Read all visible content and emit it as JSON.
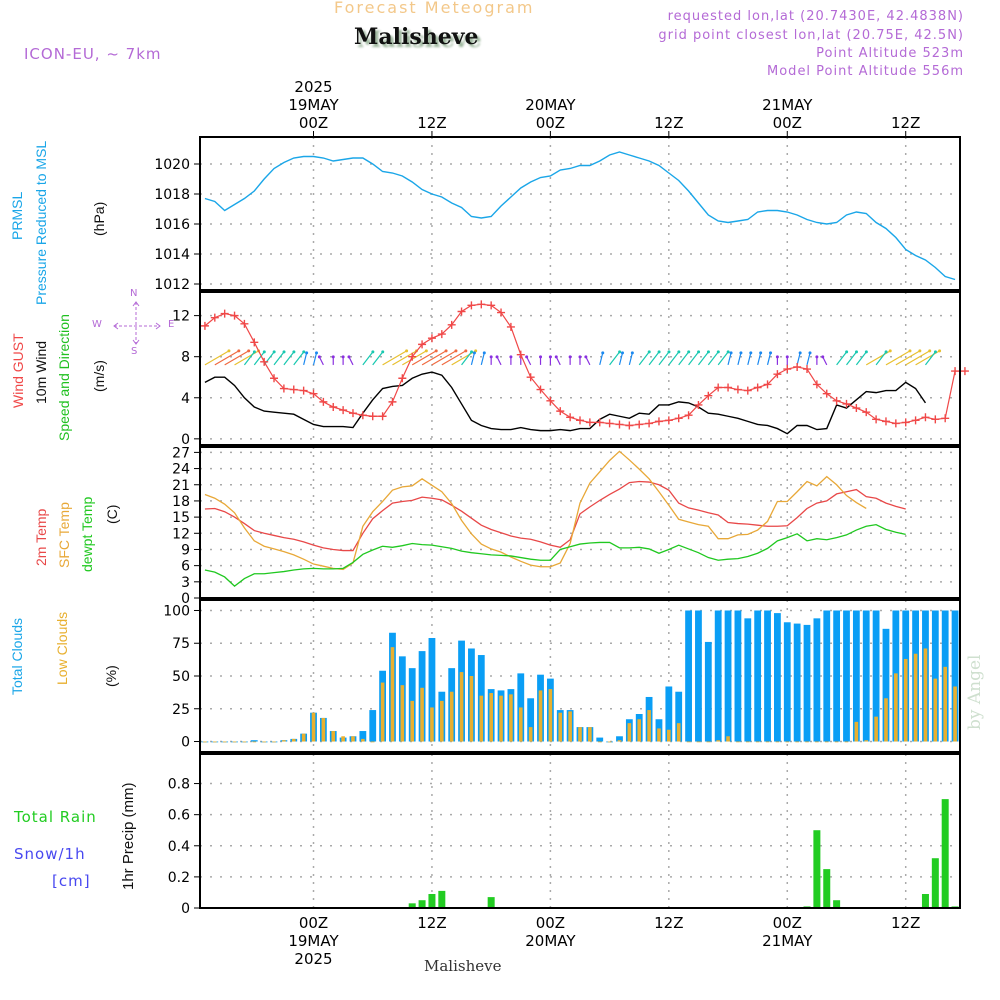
{
  "header": {
    "title": "Forecast Meteogram",
    "location": "Malisheve",
    "model": "ICON-EU, ~ 7km",
    "requested": "requested lon,lat (20.7430E, 42.4838N)",
    "grid_point": "grid point closest lon,lat (20.75E, 42.5N)",
    "point_altitude": "Point Altitude 523m",
    "model_altitude": "Model Point Altitude 556m",
    "footer_location": "Malisheve",
    "credit": "by Angel"
  },
  "time_axis": {
    "top_labels": [
      {
        "hour": 0,
        "lines": [
          "2025",
          "19MAY",
          "00Z"
        ]
      },
      {
        "hour": 12,
        "lines": [
          "12Z"
        ]
      },
      {
        "hour": 24,
        "lines": [
          "20MAY",
          "00Z"
        ]
      },
      {
        "hour": 36,
        "lines": [
          "12Z"
        ]
      },
      {
        "hour": 48,
        "lines": [
          "21MAY",
          "00Z"
        ]
      },
      {
        "hour": 60,
        "lines": [
          "12Z"
        ]
      }
    ],
    "bottom_labels": [
      {
        "hour": 0,
        "lines": [
          "00Z",
          "19MAY",
          "2025"
        ]
      },
      {
        "hour": 12,
        "lines": [
          "12Z"
        ]
      },
      {
        "hour": 24,
        "lines": [
          "00Z",
          "20MAY"
        ]
      },
      {
        "hour": 36,
        "lines": [
          "12Z"
        ]
      },
      {
        "hour": 48,
        "lines": [
          "00Z",
          "21MAY"
        ]
      },
      {
        "hour": 60,
        "lines": [
          "12Z"
        ]
      }
    ],
    "range_hours": [
      -11.5,
      65.5
    ],
    "start_hour": -11
  },
  "labels": {
    "pressure": [
      "PRMSL",
      "Pressure Reduced to MSL",
      "(hPa)"
    ],
    "wind": [
      "Wind GUST",
      "10m Wind",
      "Speed and Direction",
      "(m/s)"
    ],
    "compass": {
      "n": "N",
      "s": "S",
      "w": "W",
      "e": "E"
    },
    "temp": [
      "2m Temp",
      "SFC Temp",
      "dewpt Temp",
      "(C)"
    ],
    "clouds": [
      "Total Clouds",
      "Low Clouds",
      "(%)"
    ],
    "precip": [
      "Total  Rain",
      "Snow/1h",
      "[cm]",
      "1hr Precip (mm)"
    ]
  },
  "colors": {
    "pressure": "#1aa6e8",
    "gust": "#f04848",
    "wind": "#000000",
    "temp2m": "#e84848",
    "sfc": "#e8a838",
    "dewpt": "#20c820",
    "total_clouds": "#0a9ef5",
    "low_clouds": "#e8b030",
    "rain": "#22cc22",
    "snow": "#4848f0",
    "label_purple": "#b46ad6"
  },
  "chart_data": [
    {
      "type": "line",
      "title": "PRMSL Pressure Reduced to MSL",
      "ylabel": "(hPa)",
      "ylim": [
        1011.6,
        1021.8
      ],
      "yticks": [
        1012,
        1014,
        1016,
        1018,
        1020
      ],
      "series": [
        {
          "name": "PRMSL",
          "values": [
            1017.7,
            1017.5,
            1016.9,
            1017.3,
            1017.7,
            1018.2,
            1019.0,
            1019.7,
            1020.1,
            1020.4,
            1020.5,
            1020.5,
            1020.4,
            1020.2,
            1020.3,
            1020.4,
            1020.4,
            1020.0,
            1019.5,
            1019.4,
            1019.2,
            1018.8,
            1018.3,
            1018.0,
            1017.8,
            1017.4,
            1017.1,
            1016.5,
            1016.4,
            1016.5,
            1017.2,
            1017.8,
            1018.4,
            1018.8,
            1019.1,
            1019.2,
            1019.6,
            1019.7,
            1019.9,
            1019.9,
            1020.2,
            1020.6,
            1020.8,
            1020.6,
            1020.4,
            1020.2,
            1019.9,
            1019.4,
            1018.9,
            1018.2,
            1017.4,
            1016.6,
            1016.2,
            1016.1,
            1016.2,
            1016.3,
            1016.8,
            1016.9,
            1016.9,
            1016.8,
            1016.6,
            1016.3,
            1016.1,
            1016.0,
            1016.1,
            1016.6,
            1016.8,
            1016.7,
            1016.1,
            1015.7,
            1015.1,
            1014.3,
            1013.9,
            1013.6,
            1013.1,
            1012.5,
            1012.3
          ]
        }
      ]
    },
    {
      "type": "line",
      "title": "Wind GUST / 10m Wind Speed and Direction",
      "ylabel": "(m/s)",
      "ylim": [
        -0.6,
        14.3
      ],
      "yticks": [
        0,
        4,
        8,
        12
      ],
      "series": [
        {
          "name": "Wind GUST",
          "values": [
            11.0,
            11.8,
            12.2,
            12.0,
            11.2,
            9.4,
            7.5,
            5.9,
            4.9,
            4.8,
            4.7,
            4.4,
            3.6,
            3.1,
            2.8,
            2.5,
            2.3,
            2.2,
            2.2,
            3.6,
            5.9,
            8.0,
            9.2,
            9.8,
            10.2,
            11.1,
            12.4,
            13.0,
            13.1,
            13.0,
            12.3,
            10.9,
            8.2,
            6.0,
            4.8,
            3.7,
            2.7,
            2.1,
            1.8,
            1.6,
            1.6,
            1.5,
            1.4,
            1.3,
            1.4,
            1.5,
            1.7,
            1.8,
            2.0,
            2.3,
            3.3,
            4.2,
            5.0,
            5.0,
            4.8,
            4.7,
            5.0,
            5.3,
            6.3,
            6.8,
            7.0,
            6.8,
            5.3,
            4.4,
            3.7,
            3.4,
            3.0,
            2.6,
            1.9,
            1.7,
            1.5,
            1.6,
            1.8,
            2.1,
            1.9,
            2.0,
            6.6,
            6.6
          ]
        },
        {
          "name": "10m Wind",
          "values": [
            5.5,
            6.0,
            6.0,
            5.2,
            4.0,
            3.1,
            2.7,
            2.6,
            2.5,
            2.4,
            1.9,
            1.4,
            1.2,
            1.2,
            1.2,
            1.1,
            2.5,
            3.8,
            4.9,
            5.1,
            5.2,
            5.9,
            6.3,
            6.5,
            6.2,
            5.0,
            3.4,
            1.8,
            1.3,
            1.0,
            0.9,
            0.9,
            1.1,
            0.9,
            0.8,
            0.8,
            0.9,
            0.8,
            1.0,
            1.0,
            1.9,
            2.4,
            2.2,
            2.0,
            2.5,
            2.4,
            3.3,
            3.3,
            3.6,
            3.5,
            3.1,
            2.5,
            2.4,
            2.2,
            2.0,
            1.7,
            1.4,
            1.3,
            1.0,
            0.5,
            1.3,
            1.3,
            0.9,
            1.0,
            3.3,
            3.0,
            3.8,
            4.6,
            4.5,
            4.7,
            4.7,
            5.5,
            4.9,
            3.5
          ]
        }
      ],
      "wind_arrows": {
        "note": "hourly direction arrows at ~7.5 m/s level, colored by speed"
      }
    },
    {
      "type": "line",
      "title": "2m Temp / SFC Temp / dewpt Temp",
      "ylabel": "(C)",
      "ylim": [
        0,
        28
      ],
      "yticks": [
        0,
        3,
        6,
        9,
        12,
        15,
        18,
        21,
        24,
        27
      ],
      "series": [
        {
          "name": "2m Temp",
          "values": [
            16.5,
            16.6,
            16.0,
            15.0,
            13.8,
            12.5,
            12.0,
            11.6,
            11.2,
            10.9,
            10.4,
            9.8,
            9.3,
            9.0,
            8.8,
            8.8,
            12.0,
            14.7,
            16.2,
            17.6,
            17.9,
            18.1,
            18.7,
            18.5,
            18.2,
            17.2,
            16.1,
            14.8,
            13.5,
            12.7,
            12.1,
            11.5,
            11.1,
            10.9,
            10.4,
            9.8,
            9.4,
            10.8,
            15.6,
            16.9,
            18.1,
            19.2,
            20.2,
            21.4,
            21.6,
            21.5,
            21.0,
            20.0,
            17.6,
            16.7,
            16.3,
            15.8,
            15.4,
            14.0,
            13.8,
            13.7,
            13.5,
            13.3,
            13.3,
            13.4,
            14.9,
            16.6,
            17.6,
            18.0,
            19.3,
            19.7,
            20.1,
            18.8,
            18.5,
            17.6,
            17.0,
            16.5
          ]
        },
        {
          "name": "SFC Temp",
          "values": [
            19.2,
            18.5,
            17.4,
            15.8,
            13.0,
            10.6,
            9.6,
            9.1,
            8.6,
            8.0,
            7.2,
            6.3,
            5.9,
            5.5,
            5.3,
            6.5,
            13.3,
            16.0,
            17.9,
            20.0,
            20.6,
            20.8,
            22.1,
            20.9,
            19.7,
            17.5,
            14.4,
            11.9,
            10.0,
            9.1,
            8.5,
            7.6,
            6.8,
            6.1,
            5.8,
            5.8,
            6.5,
            10.1,
            17.6,
            21.3,
            23.4,
            25.5,
            27.2,
            25.6,
            23.9,
            22.1,
            19.7,
            17.2,
            14.6,
            14.1,
            13.6,
            13.3,
            11.0,
            11.0,
            11.7,
            11.8,
            12.6,
            14.2,
            17.9,
            17.9,
            19.7,
            21.6,
            20.8,
            22.5,
            21.0,
            19.0,
            17.7,
            16.6
          ]
        },
        {
          "name": "dewpt Temp",
          "values": [
            5.2,
            4.8,
            3.9,
            2.2,
            3.6,
            4.5,
            4.5,
            4.7,
            4.9,
            5.2,
            5.4,
            5.5,
            5.4,
            5.4,
            5.5,
            6.6,
            8.1,
            8.9,
            9.6,
            9.4,
            9.7,
            10.1,
            9.9,
            9.8,
            9.5,
            9.2,
            8.7,
            8.4,
            8.2,
            8.0,
            7.9,
            7.8,
            7.5,
            7.2,
            7.0,
            7.0,
            9.0,
            9.5,
            10.0,
            10.2,
            10.3,
            10.3,
            9.3,
            9.3,
            9.4,
            9.1,
            8.3,
            9.0,
            9.8,
            9.1,
            8.4,
            7.5,
            7.0,
            7.2,
            7.3,
            7.7,
            8.3,
            9.2,
            10.6,
            11.2,
            11.9,
            10.6,
            11.0,
            10.8,
            11.2,
            11.7,
            12.6,
            13.3,
            13.6,
            12.7,
            12.2,
            11.8
          ]
        }
      ]
    },
    {
      "type": "bar",
      "title": "Total Clouds / Low Clouds",
      "ylabel": "(%)",
      "ylim": [
        -8,
        108
      ],
      "yticks": [
        0,
        25,
        50,
        75,
        100
      ],
      "series": [
        {
          "name": "Total Clouds",
          "values": [
            0,
            0,
            0,
            0,
            0,
            1,
            0,
            0,
            1,
            2,
            6,
            22,
            18,
            8,
            3,
            4,
            8,
            24,
            54,
            83,
            65,
            56,
            69,
            79,
            38,
            56,
            77,
            71,
            66,
            40,
            39,
            40,
            52,
            33,
            51,
            48,
            24,
            24,
            11,
            11,
            3,
            0,
            4,
            17,
            21,
            34,
            17,
            42,
            38,
            100,
            100,
            76,
            100,
            100,
            100,
            94,
            100,
            100,
            98,
            91,
            90,
            89,
            94,
            100,
            100,
            100,
            100,
            100,
            100,
            86,
            100,
            100,
            100,
            100,
            100,
            100,
            100,
            100,
            100
          ]
        },
        {
          "name": "Low Clouds",
          "values": [
            0,
            0,
            0,
            0,
            0,
            0,
            0,
            0,
            1,
            2,
            6,
            22,
            18,
            8,
            4,
            4,
            2,
            0,
            45,
            72,
            43,
            31,
            41,
            26,
            31,
            38,
            53,
            50,
            35,
            37,
            35,
            36,
            26,
            11,
            39,
            40,
            22,
            23,
            11,
            11,
            0,
            0,
            1,
            14,
            17,
            24,
            10,
            9,
            14,
            0,
            0,
            0,
            1,
            4,
            0,
            0,
            0,
            0,
            0,
            0,
            0,
            0,
            0,
            0,
            0,
            0,
            15,
            1,
            19,
            33,
            52,
            63,
            67,
            71,
            48,
            57,
            42,
            45,
            50,
            36,
            21,
            3
          ]
        }
      ]
    },
    {
      "type": "bar",
      "title": "1hr Precip",
      "ylabel": "1hr Precip (mm)",
      "ylim": [
        0,
        0.99
      ],
      "yticks": [
        0,
        0.2,
        0.4,
        0.6,
        0.8
      ],
      "series": [
        {
          "name": "Total Rain",
          "points": [
            [
              10,
              0.03
            ],
            [
              11,
              0.05
            ],
            [
              12,
              0.09
            ],
            [
              13,
              0.11
            ],
            [
              18,
              0.07
            ],
            [
              50,
              0.01
            ],
            [
              51,
              0.5
            ],
            [
              52,
              0.25
            ],
            [
              53,
              0.05
            ],
            [
              62,
              0.09
            ],
            [
              63,
              0.32
            ],
            [
              64,
              0.7
            ],
            [
              65,
              0.01
            ]
          ]
        }
      ]
    }
  ]
}
